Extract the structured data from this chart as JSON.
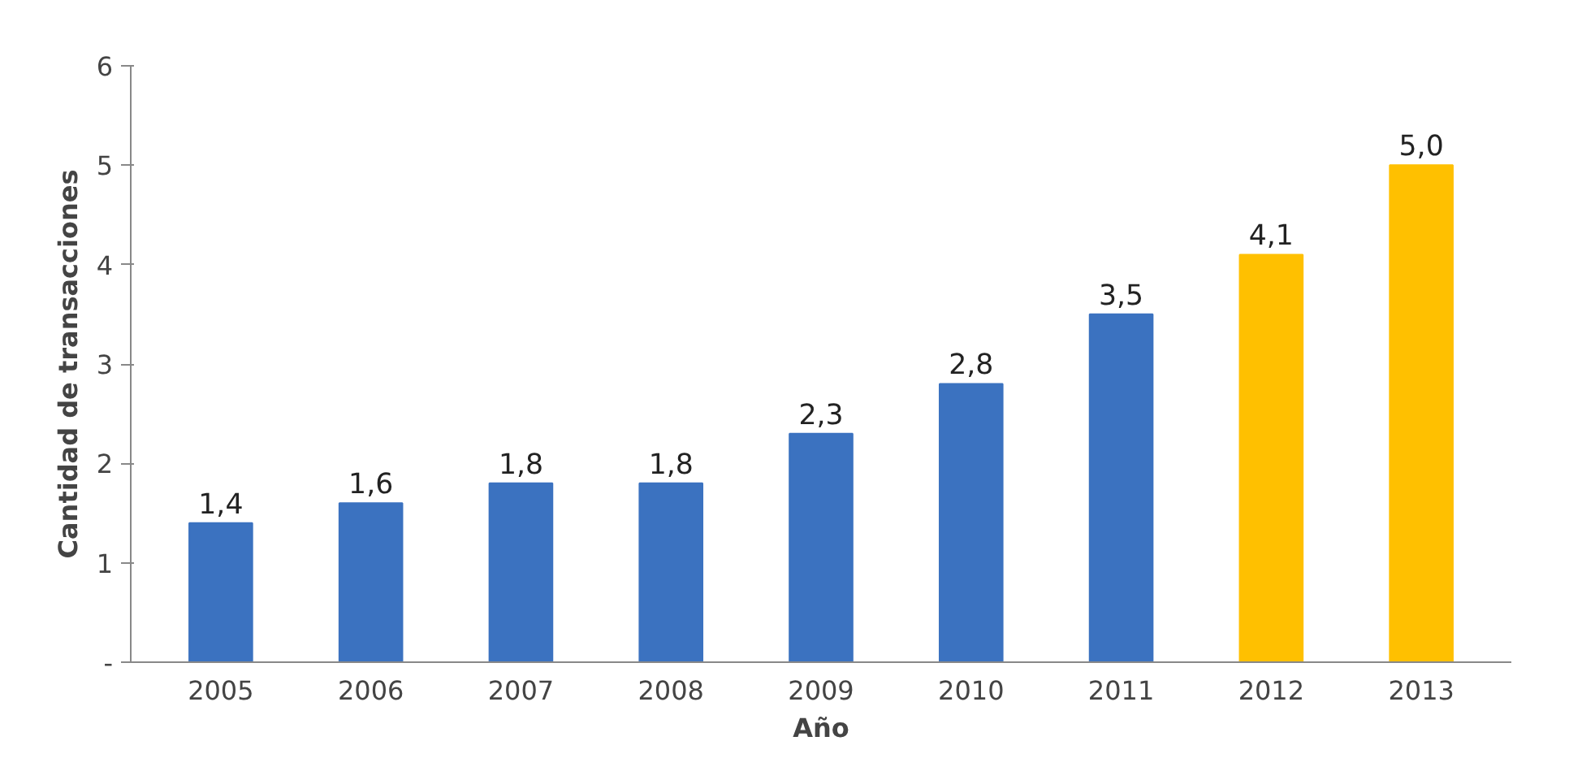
{
  "chart_data": {
    "type": "bar",
    "xlabel": "Año",
    "ylabel": "Cantidad de transacciones",
    "categories": [
      "2005",
      "2006",
      "2007",
      "2008",
      "2009",
      "2010",
      "2011",
      "2012",
      "2013"
    ],
    "values": [
      1.4,
      1.6,
      1.8,
      1.8,
      2.3,
      2.8,
      3.5,
      4.1,
      5.0
    ],
    "colors": [
      "#3b72c0",
      "#3b72c0",
      "#3b72c0",
      "#3b72c0",
      "#3b72c0",
      "#3b72c0",
      "#3b72c0",
      "#ffc000",
      "#ffc000"
    ],
    "value_labels": [
      "1,4",
      "1,6",
      "1,8",
      "1,8",
      "2,3",
      "2,8",
      "3,5",
      "4,1",
      "5,0"
    ],
    "ylim": [
      0,
      6
    ],
    "yticks": [
      {
        "value": 0,
        "label": "-"
      },
      1,
      2,
      3,
      4,
      5,
      6
    ],
    "grid": false
  }
}
